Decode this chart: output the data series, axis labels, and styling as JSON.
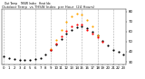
{
  "title": "Outdoor Temp  vs THSW Index  per Hour  (24 Hours)",
  "hours": [
    0,
    1,
    2,
    3,
    4,
    5,
    6,
    7,
    8,
    9,
    10,
    11,
    12,
    13,
    14,
    15,
    16,
    17,
    18,
    19,
    20,
    21,
    22,
    23
  ],
  "outdoor_temp": [
    35,
    34,
    33,
    32,
    32,
    32,
    33,
    34,
    37,
    42,
    47,
    53,
    58,
    62,
    64,
    65,
    63,
    60,
    56,
    51,
    46,
    42,
    40,
    37
  ],
  "thsw": [
    null,
    null,
    null,
    null,
    null,
    null,
    null,
    null,
    null,
    43,
    52,
    62,
    70,
    75,
    78,
    77,
    72,
    65,
    56,
    null,
    null,
    null,
    null,
    null
  ],
  "heat_index": [
    null,
    null,
    null,
    null,
    null,
    null,
    null,
    null,
    null,
    42,
    48,
    55,
    61,
    65,
    67,
    67,
    62,
    58,
    54,
    50,
    null,
    null,
    null,
    null
  ],
  "outdoor_temp_color": "#000000",
  "thsw_color": "#FFA500",
  "heat_index_color": "#FF0000",
  "background_color": "#ffffff",
  "grid_color": "#888888",
  "ylim": [
    27,
    82
  ],
  "ytick_vals": [
    30,
    40,
    50,
    60,
    70,
    80
  ],
  "ytick_labels": [
    "30",
    "40",
    "50",
    "60",
    "70",
    "80"
  ],
  "xlim": [
    -0.5,
    23.5
  ],
  "xticks": [
    0,
    1,
    2,
    3,
    4,
    5,
    6,
    7,
    8,
    9,
    10,
    11,
    12,
    13,
    14,
    15,
    16,
    17,
    18,
    19,
    20,
    21,
    22,
    23
  ],
  "xtick_labels": [
    "0",
    "1",
    "2",
    "3",
    "4",
    "5",
    "6",
    "7",
    "8",
    "9",
    "10",
    "11",
    "12",
    "13",
    "14",
    "15",
    "16",
    "17",
    "18",
    "19",
    "20",
    "21",
    "22",
    "23"
  ],
  "marker_size": 2.5,
  "legend_labels": [
    "Out Temp",
    "THSW Index",
    "Heat Idx"
  ]
}
